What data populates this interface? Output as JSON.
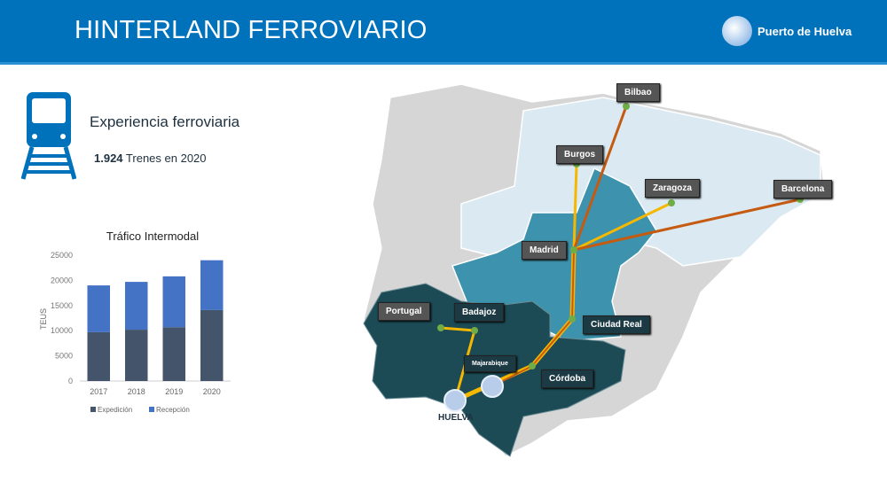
{
  "header": {
    "title": "HINTERLAND FERROVIARIO",
    "logo_text": "Puerto de Huelva"
  },
  "experience": {
    "title": "Experiencia ferroviaria",
    "trains_value": "1.924",
    "trains_label": " Trenes en 2020",
    "icon": "train-icon"
  },
  "chart_data": {
    "type": "bar",
    "stacked": true,
    "title": "Tráfico Intermodal",
    "xlabel": "",
    "ylabel": "TEUS",
    "categories": [
      "2017",
      "2018",
      "2019",
      "2020"
    ],
    "ylim": [
      0,
      25000
    ],
    "yticks": [
      "0",
      "5000",
      "10000",
      "15000",
      "20000",
      "25000"
    ],
    "series": [
      {
        "name": "Expedición",
        "color": "#44546a",
        "values": [
          9700,
          10200,
          10700,
          14100
        ]
      },
      {
        "name": "Recepción",
        "color": "#4472c4",
        "values": [
          9300,
          9500,
          10100,
          9900
        ]
      }
    ],
    "legend": "bottom",
    "grid": false
  },
  "map": {
    "labels": {
      "bilbao": "Bilbao",
      "burgos": "Burgos",
      "zaragoza": "Zaragoza",
      "barcelona": "Barcelona",
      "madrid": "Madrid",
      "portugal": "Portugal",
      "badajoz": "Badajoz",
      "ciudad_real": "Ciudad Real",
      "majarabique": "Majarabique",
      "cordoba": "Córdoba",
      "huelva": "HUELVA"
    },
    "colors": {
      "route_orange": "#c55a11",
      "route_yellow": "#f5b800",
      "node": "#70ad47",
      "region_dark": "#1c4a55",
      "region_mid": "#3d93ad",
      "region_light": "#dbeaf2",
      "region_gray": "#d6d6d6"
    }
  }
}
